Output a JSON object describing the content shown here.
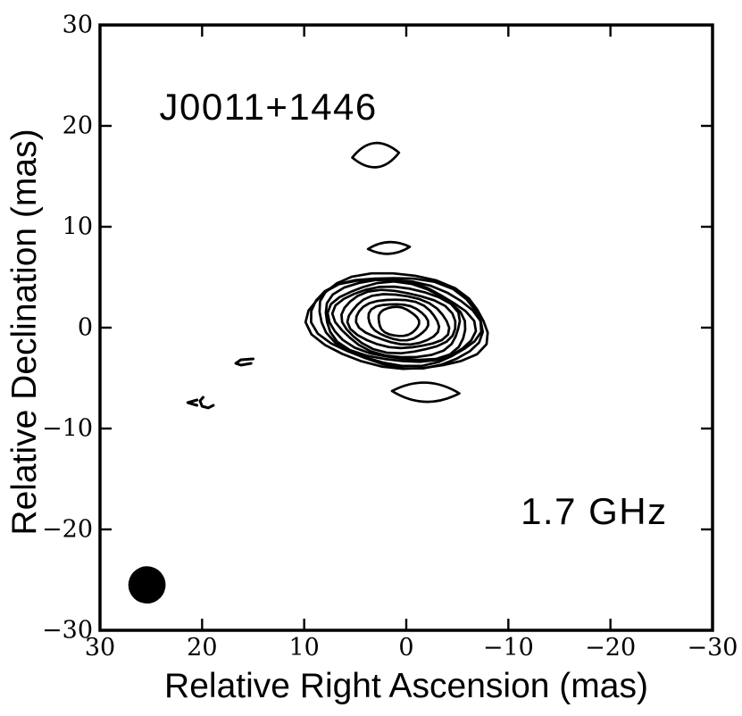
{
  "chart_data": {
    "type": "contour",
    "description": "VLBI radio contour map of a compact source with core, jet knots and restoring beam",
    "title": "J0011+1446",
    "annotation": "1.7 GHz",
    "xlabel": "Relative Right Ascension (mas)",
    "ylabel": "Relative Declination (mas)",
    "xlim": [
      30,
      -30
    ],
    "ylim": [
      -30,
      30
    ],
    "x_tick_values": [
      30,
      20,
      10,
      0,
      -10,
      -20,
      -30
    ],
    "x_tick_labels": [
      "30",
      "20",
      "10",
      "0",
      "−10",
      "−20",
      "−30"
    ],
    "y_tick_values": [
      30,
      20,
      10,
      0,
      -10,
      -20,
      -30
    ],
    "y_tick_labels": [
      "30",
      "20",
      "10",
      "0",
      "−10",
      "−20",
      "−30"
    ],
    "grid": false,
    "colors": {
      "ink": "#000000",
      "background": "#ffffff"
    },
    "annotations": [
      {
        "name": "source-name",
        "text": "J0011+1446",
        "x": 13.5,
        "y": 21.9
      },
      {
        "name": "frequency",
        "text": "1.7 GHz",
        "x": -18.4,
        "y": -18.2
      }
    ],
    "core_component": {
      "center": [
        0.8,
        0.6
      ],
      "rotation_deg": 7,
      "n_contours": 11,
      "contour_semi_axes_mas": [
        [
          8.84,
          4.69
        ],
        [
          8.36,
          4.47
        ],
        [
          7.87,
          4.25
        ],
        [
          7.39,
          3.98
        ],
        [
          6.87,
          3.72
        ],
        [
          6.3,
          3.41
        ],
        [
          5.64,
          3.05
        ],
        [
          4.9,
          2.65
        ],
        [
          4.02,
          2.21
        ],
        [
          2.93,
          1.77
        ],
        [
          2.01,
          1.42
        ]
      ],
      "wobble": {
        "a1": 0.03,
        "a2": 0.022,
        "a3": 0.015
      }
    },
    "secondary_features": [
      {
        "name": "jet-knot-north",
        "center": [
          3.0,
          17.1
        ],
        "rx": 2.3,
        "ry": 1.2,
        "rotation_deg": -6
      },
      {
        "name": "jet-knot-mid",
        "center": [
          1.7,
          7.9
        ],
        "rx": 2.05,
        "ry": 0.58,
        "rotation_deg": -3
      },
      {
        "name": "feature-south",
        "center": [
          -1.9,
          -6.4
        ],
        "rx": 3.3,
        "ry": 0.95,
        "rotation_deg": 2
      }
    ],
    "noise_marks": [
      {
        "name": "noise-mark-1",
        "points_mas": [
          [
            15.0,
            -3.1
          ],
          [
            16.2,
            -3.19
          ],
          [
            16.7,
            -3.54
          ],
          [
            16.2,
            -3.72
          ],
          [
            15.2,
            -3.54
          ]
        ]
      },
      {
        "name": "noise-mark-2",
        "points_mas": [
          [
            19.9,
            -6.9
          ],
          [
            20.2,
            -7.26
          ],
          [
            20.0,
            -7.79
          ],
          [
            19.4,
            -7.96
          ],
          [
            18.9,
            -7.7
          ]
        ]
      },
      {
        "name": "noise-mark-3",
        "points_mas": [
          [
            20.5,
            -7.17
          ],
          [
            21.4,
            -7.43
          ],
          [
            20.5,
            -7.7
          ]
        ]
      }
    ],
    "beam": {
      "center": [
        25.4,
        -25.5
      ],
      "rx": 3.3,
      "ry": 1.8,
      "rotation_deg": 10,
      "filled": true
    }
  }
}
